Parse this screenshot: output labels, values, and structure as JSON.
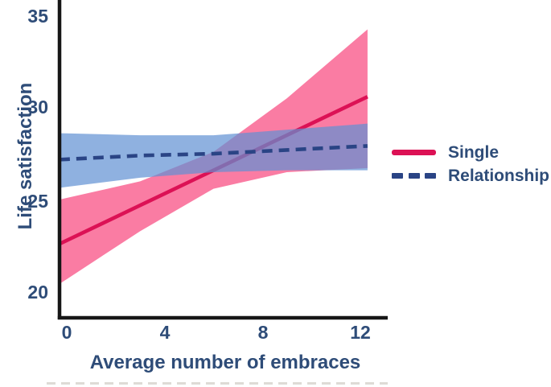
{
  "figure": {
    "background": "#ffffff"
  },
  "axes": {
    "x_label": "Average number of embraces",
    "y_label": "Life satisfaction",
    "x_tick_labels": [
      "0",
      "4",
      "8",
      "12"
    ],
    "y_tick_labels": [
      "20",
      "25",
      "30",
      "35"
    ]
  },
  "legend": {
    "items": [
      {
        "label": "Single",
        "line_style": "solid",
        "color": "#DC1155"
      },
      {
        "label": "Relationship",
        "line_style": "dashed",
        "color": "#2A4485"
      }
    ]
  },
  "colors": {
    "text_navy": "#2E4C78",
    "axis_black": "#161616",
    "single_line": "#DC1155",
    "single_band": "#FA7CA3",
    "relationship_line": "#2A4485",
    "relationship_band": "#5F90D3",
    "bottom_rule_gray": "#dedbd6"
  },
  "chart_data": {
    "type": "line",
    "title": "",
    "xlabel": "Average number of embraces",
    "ylabel": "Life satisfaction",
    "x_ticks": [
      0,
      4,
      8,
      12
    ],
    "y_ticks": [
      20,
      25,
      30,
      35
    ],
    "xlim": [
      -0.3,
      13.1
    ],
    "ylim": [
      18.6,
      35.9
    ],
    "grid": false,
    "legend_position": "right",
    "x": [
      0,
      3,
      6,
      9,
      12
    ],
    "series": [
      {
        "name": "Single",
        "style": "solid",
        "color": "#DC1155",
        "band_color": "#FA7CA3",
        "band_opacity": 1,
        "values": [
          22.8,
          24.7,
          26.6,
          28.5,
          30.4
        ],
        "ci_lower": [
          20.7,
          23.3,
          25.6,
          26.5,
          26.7
        ],
        "ci_upper": [
          25.1,
          26.0,
          27.6,
          30.5,
          33.9
        ]
      },
      {
        "name": "Relationship",
        "style": "dashed",
        "color": "#2A4485",
        "band_color": "#5F90D3",
        "band_opacity": 0.7,
        "values": [
          27.2,
          27.4,
          27.5,
          27.7,
          27.9
        ],
        "ci_lower": [
          25.7,
          26.2,
          26.5,
          26.6,
          26.6
        ],
        "ci_upper": [
          28.6,
          28.5,
          28.5,
          28.8,
          29.1
        ]
      }
    ]
  }
}
